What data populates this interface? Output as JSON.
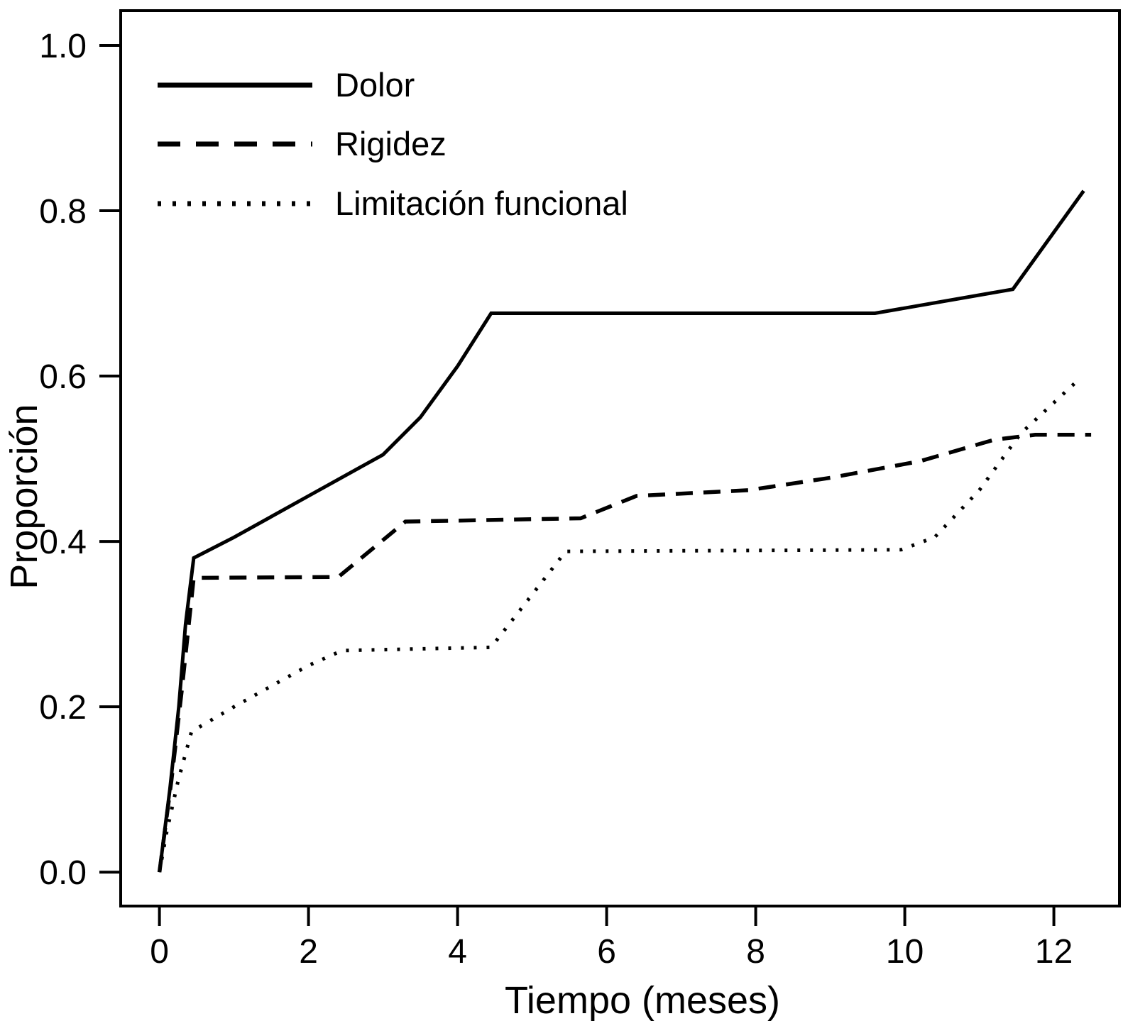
{
  "figure": {
    "background": "#ffffff",
    "ink_color": "#000000"
  },
  "chart_data": {
    "type": "line",
    "title": "",
    "xlabel": "Tiempo (meses)",
    "ylabel": "Proporción",
    "xlim": [
      -0.52,
      12.88
    ],
    "ylim": [
      -0.041,
      1.042
    ],
    "grid": false,
    "legend_position": "top-left",
    "xticks": {
      "values": [
        0,
        2,
        4,
        6,
        8,
        10,
        12
      ],
      "labels": [
        "0",
        "2",
        "4",
        "6",
        "8",
        "10",
        "12"
      ]
    },
    "yticks": {
      "values": [
        0,
        0.2,
        0.4,
        0.6,
        0.8,
        1.0
      ],
      "labels": [
        "0.0",
        "0.2",
        "0.4",
        "0.6",
        "0.8",
        "1.0"
      ]
    },
    "series": [
      {
        "name": "Dolor",
        "style": "solid",
        "points": [
          [
            0,
            0
          ],
          [
            0.14,
            0.1
          ],
          [
            0.26,
            0.2
          ],
          [
            0.35,
            0.3
          ],
          [
            0.46,
            0.38
          ],
          [
            1.0,
            0.405
          ],
          [
            2.0,
            0.455
          ],
          [
            3.0,
            0.505
          ],
          [
            3.5,
            0.55
          ],
          [
            4.0,
            0.612
          ],
          [
            4.45,
            0.676
          ],
          [
            9.6,
            0.676
          ],
          [
            11.45,
            0.705
          ],
          [
            12.4,
            0.824
          ]
        ]
      },
      {
        "name": "Rigidez",
        "style": "dashed",
        "points": [
          [
            0,
            0
          ],
          [
            0.16,
            0.11
          ],
          [
            0.3,
            0.22
          ],
          [
            0.46,
            0.356
          ],
          [
            2.4,
            0.357
          ],
          [
            3.3,
            0.424
          ],
          [
            5.65,
            0.428
          ],
          [
            6.4,
            0.455
          ],
          [
            7.9,
            0.462
          ],
          [
            9.0,
            0.477
          ],
          [
            10.2,
            0.497
          ],
          [
            11.2,
            0.523
          ],
          [
            11.75,
            0.529
          ],
          [
            12.5,
            0.529
          ]
        ]
      },
      {
        "name": "Limitación funcional",
        "style": "dotted",
        "points": [
          [
            0,
            0
          ],
          [
            0.1,
            0.05
          ],
          [
            0.25,
            0.11
          ],
          [
            0.43,
            0.17
          ],
          [
            1.0,
            0.2
          ],
          [
            1.5,
            0.225
          ],
          [
            2.0,
            0.25
          ],
          [
            2.45,
            0.268
          ],
          [
            4.45,
            0.272
          ],
          [
            5.45,
            0.388
          ],
          [
            9.95,
            0.39
          ],
          [
            10.4,
            0.405
          ],
          [
            11.0,
            0.462
          ],
          [
            11.55,
            0.53
          ],
          [
            12.3,
            0.593
          ]
        ]
      }
    ]
  }
}
